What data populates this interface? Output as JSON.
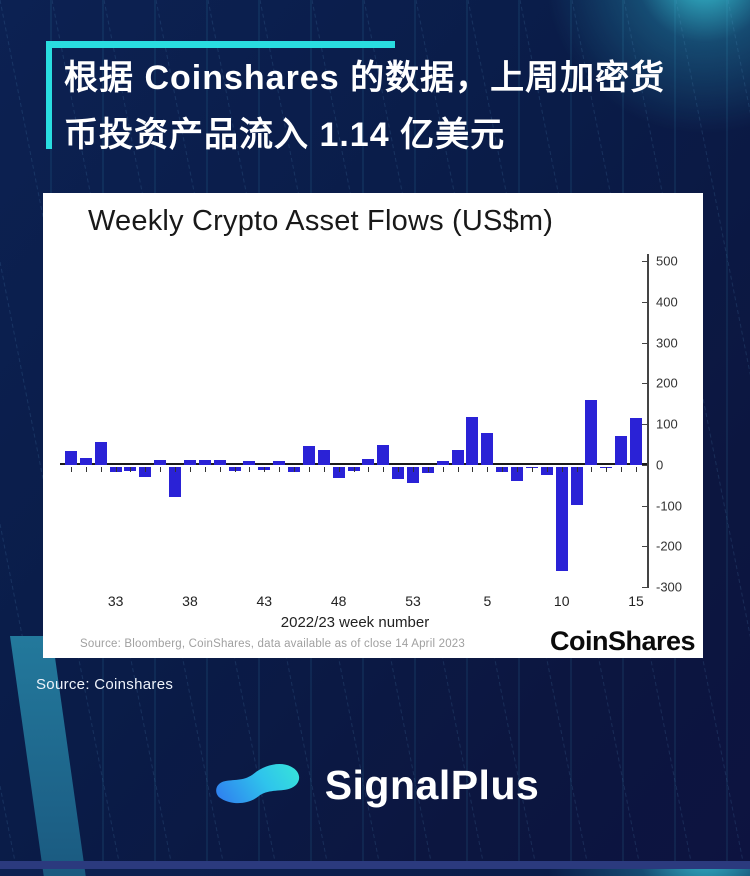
{
  "colors": {
    "background_navy": "#0a1c48",
    "accent_cyan": "#29dde0",
    "bar_blue": "#2a22d6",
    "teal_band": "#1f6e92",
    "card_white": "#ffffff"
  },
  "header": {
    "title_line1": "根据 Coinshares 的数据，上周加密货",
    "title_line2": "币投资产品流入 1.14 亿美元"
  },
  "chart_card": {
    "title": "Weekly Crypto Asset Flows (US$m)",
    "xlabel": "2022/23 week number",
    "source_note": "Source: Bloomberg, CoinShares, data available as of close 14 April 2023",
    "brand": "CoinShares"
  },
  "chart_data": {
    "type": "bar",
    "title": "Weekly Crypto Asset Flows (US$m)",
    "xlabel": "2022/23 week number",
    "ylabel": "",
    "ylim": [
      -300,
      500
    ],
    "grid": false,
    "legend": "none",
    "y_axis_side": "right",
    "y_ticks": [
      500,
      400,
      300,
      200,
      100,
      0,
      -100,
      -200,
      -300
    ],
    "x_tick_labels": [
      "33",
      "38",
      "43",
      "48",
      "53",
      "5",
      "10",
      "15"
    ],
    "categories": [
      "30",
      "31",
      "32",
      "33",
      "34",
      "35",
      "36",
      "37",
      "38",
      "39",
      "40",
      "41",
      "42",
      "43",
      "44",
      "45",
      "46",
      "47",
      "48",
      "49",
      "50",
      "51",
      "52",
      "53",
      "1",
      "2",
      "3",
      "4",
      "5",
      "6",
      "7",
      "8",
      "9",
      "10",
      "11",
      "12",
      "13",
      "14",
      "15"
    ],
    "values": [
      33,
      16,
      55,
      -14,
      -10,
      -25,
      12,
      -74,
      12,
      11,
      12,
      -10,
      10,
      -8,
      8,
      -12,
      46,
      35,
      -28,
      -10,
      13,
      48,
      -30,
      -40,
      -15,
      8,
      35,
      116,
      78,
      -12,
      -34,
      -3,
      -20,
      -255,
      -95,
      160,
      -4,
      70,
      114
    ],
    "bar_color": "#2a22d6"
  },
  "footer": {
    "source": "Source: Coinshares",
    "brand": "SignalPlus"
  }
}
